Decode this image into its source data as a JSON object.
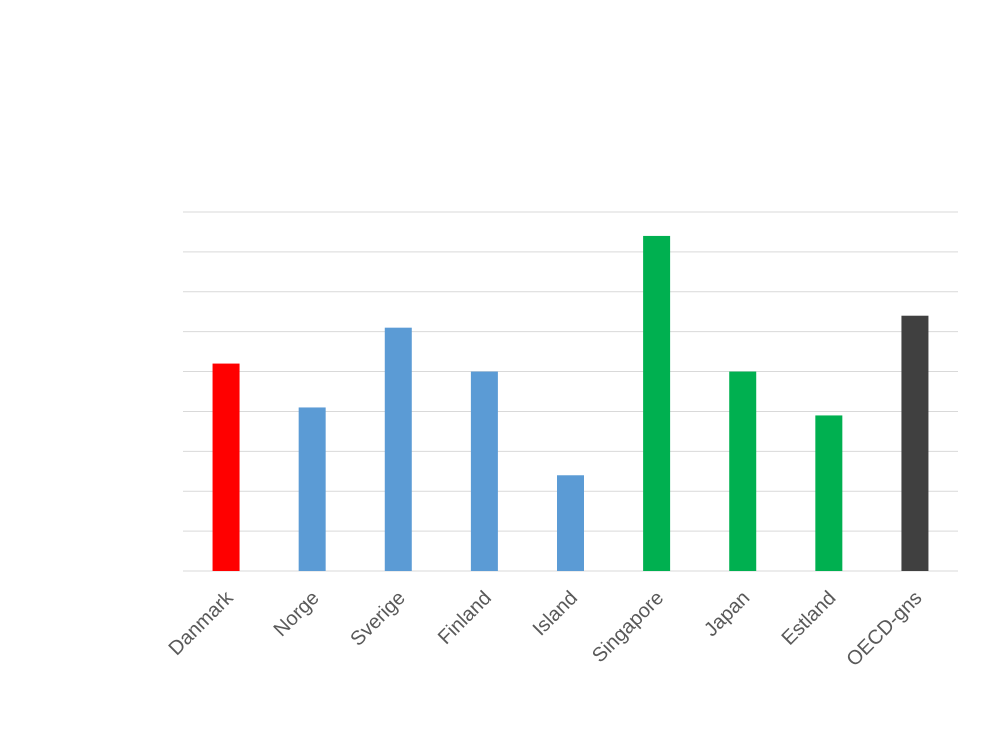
{
  "chart_data": {
    "type": "bar",
    "categories": [
      "Danmark",
      "Norge",
      "Sverige",
      "Finland",
      "Island",
      "Singapore",
      "Japan",
      "Estland",
      "OECD-gns"
    ],
    "values": [
      5.2,
      4.1,
      6.1,
      5.0,
      2.4,
      8.4,
      5.0,
      3.9,
      6.4
    ],
    "colors": [
      "#ff0000",
      "#5b9bd5",
      "#5b9bd5",
      "#5b9bd5",
      "#5b9bd5",
      "#00b050",
      "#00b050",
      "#00b050",
      "#404040"
    ],
    "ylim": [
      0,
      9
    ],
    "yticks": [
      0,
      1,
      2,
      3,
      4,
      5,
      6,
      7,
      8,
      9
    ],
    "ytick_labels": false,
    "grid": true
  }
}
